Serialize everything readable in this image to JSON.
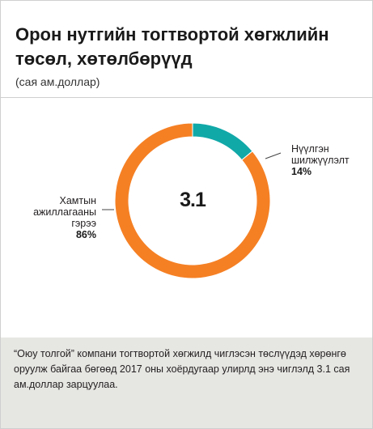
{
  "header": {
    "title": "Орон нутгийн тогтвортой хөгжлийн төсөл, хөтөлбөрүүд",
    "subtitle": "(сая ам.доллар)"
  },
  "chart_data": {
    "type": "pie",
    "variant": "donut",
    "center_label": "3.1",
    "slices": [
      {
        "label": "Нүүлгэн шилжүүлэлт",
        "label_lines": [
          "Нүүлгэн",
          "шилжүүлэлт"
        ],
        "value": 14,
        "value_label": "14%",
        "color": "#11a8a8"
      },
      {
        "label": "Хамтын ажиллагааны гэрээ",
        "label_lines": [
          "Хамтын",
          "ажиллагааны",
          "гэрээ"
        ],
        "value": 86,
        "value_label": "86%",
        "color": "#f58024"
      }
    ]
  },
  "footer": {
    "note": "“Оюу толгой” компани тогтвортой хөгжилд чиглэсэн төслүүдэд хөрөнгө оруулж байгаа бөгөөд 2017 оны хоёрдугаар улирлд энэ чиглэлд 3.1 сая ам.доллар зарцуулаа."
  }
}
